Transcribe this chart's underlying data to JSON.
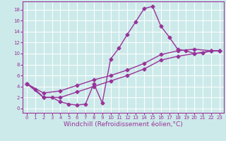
{
  "background_color": "#cdeaea",
  "line_color": "#993399",
  "marker": "D",
  "markersize": 2.5,
  "linewidth": 1.0,
  "xlabel": "Windchill (Refroidissement éolien,°C)",
  "xlabel_fontsize": 6.5,
  "xlim": [
    -0.5,
    23.5
  ],
  "ylim": [
    -0.8,
    19.5
  ],
  "xticks": [
    0,
    1,
    2,
    3,
    4,
    5,
    6,
    7,
    8,
    9,
    10,
    11,
    12,
    13,
    14,
    15,
    16,
    17,
    18,
    19,
    20,
    21,
    22,
    23
  ],
  "yticks": [
    0,
    2,
    4,
    6,
    8,
    10,
    12,
    14,
    16,
    18
  ],
  "grid_color": "#ffffff",
  "tick_fontsize": 5.0,
  "line1_x": [
    0,
    1,
    2,
    3,
    4,
    5,
    6,
    7,
    8,
    9,
    10,
    11,
    12,
    13,
    14,
    15,
    16,
    17,
    18,
    19,
    20,
    21,
    22,
    23
  ],
  "line1_y": [
    4.5,
    3.5,
    2.0,
    2.0,
    1.2,
    0.8,
    0.6,
    0.8,
    4.5,
    1.0,
    9.0,
    11.0,
    13.5,
    15.8,
    18.2,
    18.6,
    15.0,
    13.0,
    10.8,
    10.5,
    10.0,
    10.1,
    10.5,
    10.5
  ],
  "line2_x": [
    0,
    2,
    4,
    6,
    8,
    10,
    12,
    14,
    16,
    18,
    20,
    22,
    23
  ],
  "line2_y": [
    4.5,
    2.8,
    3.2,
    4.2,
    5.2,
    6.0,
    7.0,
    8.2,
    9.8,
    10.5,
    10.8,
    10.5,
    10.5
  ],
  "line3_x": [
    0,
    2,
    4,
    6,
    8,
    10,
    12,
    14,
    16,
    18,
    20,
    22,
    23
  ],
  "line3_y": [
    4.5,
    2.0,
    2.0,
    3.0,
    4.0,
    5.0,
    6.0,
    7.2,
    8.8,
    9.5,
    10.0,
    10.5,
    10.5
  ]
}
